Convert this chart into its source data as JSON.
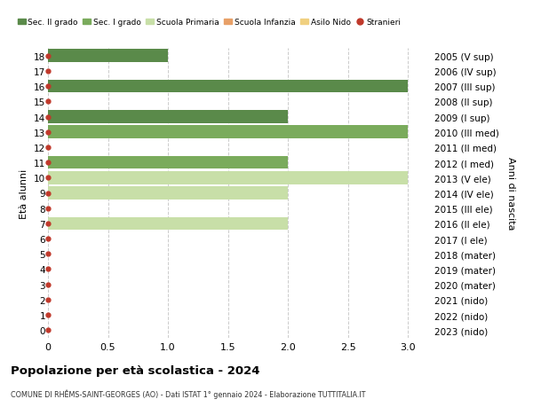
{
  "ages": [
    18,
    17,
    16,
    15,
    14,
    13,
    12,
    11,
    10,
    9,
    8,
    7,
    6,
    5,
    4,
    3,
    2,
    1,
    0
  ],
  "years": [
    "2005 (V sup)",
    "2006 (IV sup)",
    "2007 (III sup)",
    "2008 (II sup)",
    "2009 (I sup)",
    "2010 (III med)",
    "2011 (II med)",
    "2012 (I med)",
    "2013 (V ele)",
    "2014 (IV ele)",
    "2015 (III ele)",
    "2016 (II ele)",
    "2017 (I ele)",
    "2018 (mater)",
    "2019 (mater)",
    "2020 (mater)",
    "2021 (nido)",
    "2022 (nido)",
    "2023 (nido)"
  ],
  "values": [
    1,
    0,
    3,
    0,
    2,
    3,
    0,
    2,
    3,
    2,
    0,
    2,
    0,
    0,
    0,
    0,
    0,
    0,
    0
  ],
  "bar_colors": [
    "#5a8a4a",
    "#5a8a4a",
    "#5a8a4a",
    "#5a8a4a",
    "#5a8a4a",
    "#7aab5c",
    "#7aab5c",
    "#7aab5c",
    "#c8dfa8",
    "#c8dfa8",
    "#c8dfa8",
    "#c8dfa8",
    "#c8dfa8",
    "#e8a068",
    "#e8a068",
    "#e8a068",
    "#f0d080",
    "#f0d080",
    "#f0d080"
  ],
  "legend_labels": [
    "Sec. II grado",
    "Sec. I grado",
    "Scuola Primaria",
    "Scuola Infanzia",
    "Asilo Nido",
    "Stranieri"
  ],
  "legend_colors": [
    "#5a8a4a",
    "#7aab5c",
    "#c8dfa8",
    "#e8a068",
    "#f0d080",
    "#c0392b"
  ],
  "dot_color": "#c0392b",
  "title": "Popolazione per età scolastica - 2024",
  "subtitle": "COMUNE DI RHÊMS-SAINT-GEORGES (AO) - Dati ISTAT 1° gennaio 2024 - Elaborazione TUTTITALIA.IT",
  "xlabel_left": "Età alunni",
  "xlabel_right": "Anni di nascita",
  "xlim": [
    0,
    3.2
  ],
  "ylim": [
    -0.5,
    18.5
  ],
  "xticks": [
    0,
    0.5,
    1.0,
    1.5,
    2.0,
    2.5,
    3.0
  ],
  "xtick_labels": [
    "0",
    "0.5",
    "1.0",
    "1.5",
    "2.0",
    "2.5",
    "3.0"
  ],
  "grid_color": "#cccccc",
  "bg_color": "#ffffff",
  "bar_height": 0.85
}
